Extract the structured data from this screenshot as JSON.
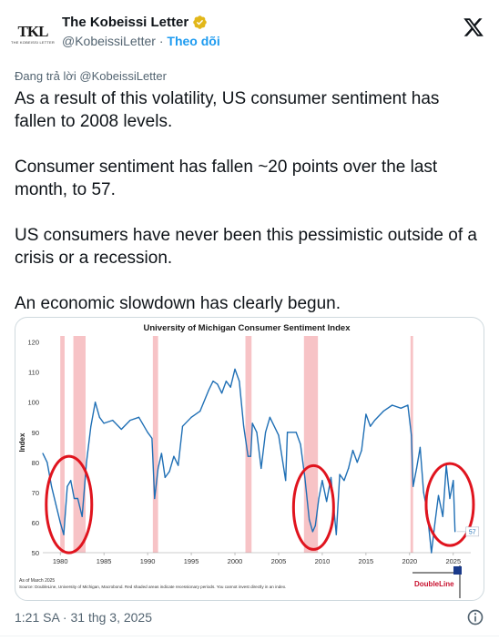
{
  "header": {
    "avatar_text": "TKL",
    "avatar_subtext": "THE KOBEISSI LETTER",
    "display_name": "The Kobeissi Letter",
    "handle": "@KobeissiLetter",
    "separator": "·",
    "follow_label": "Theo dõi"
  },
  "reply_to": "Đang trả lời @KobeissiLetter",
  "tweet": {
    "line1": "As a result of this volatility, US consumer sentiment has fallen to 2008 levels.",
    "line2": "Consumer sentiment has fallen ~20 points over the last month, to 57.",
    "line3": "US consumers have never been this pessimistic outside of a crisis or a recession.",
    "line4": "An economic slowdown has clearly begun."
  },
  "footer": {
    "timestamp": "1:21 SA · 31 thg 3, 2025"
  },
  "colors": {
    "line": "#1f6fb5",
    "recession": "#f7c3c6",
    "circle": "#e0141e",
    "link": "#1d9bf0"
  },
  "chart_data": {
    "type": "line",
    "title": "University of Michigan Consumer Sentiment Index",
    "ylabel": "Index",
    "xlabel": "",
    "xlim": [
      1978,
      2027
    ],
    "ylim": [
      50,
      122
    ],
    "y_ticks": [
      50,
      60,
      70,
      80,
      90,
      100,
      110,
      120
    ],
    "x_ticks": [
      "1980",
      "1985",
      "1990",
      "1995",
      "2000",
      "2005",
      "2010",
      "2015",
      "2020",
      "2025"
    ],
    "x_tick_values": [
      1980,
      1985,
      1990,
      1995,
      2000,
      2005,
      2010,
      2015,
      2020,
      2025
    ],
    "recessions": [
      [
        1980.0,
        1980.5
      ],
      [
        1981.5,
        1982.9
      ],
      [
        1990.6,
        1991.2
      ],
      [
        2001.2,
        2001.9
      ],
      [
        2007.9,
        2009.5
      ],
      [
        2020.1,
        2020.4
      ]
    ],
    "last_value_label": "57",
    "note": "As of March 2025",
    "source": "Source: DoubleLine, University of Michigan, Macrobond. Red shaded areas indicate recessionary periods. You cannot invest directly in an index.",
    "brand": "DoubleLine",
    "series": [
      {
        "x": [
          1978.0,
          1978.5,
          1979.0,
          1979.5,
          1980.0,
          1980.4,
          1980.8,
          1981.2,
          1981.6,
          1982.0,
          1982.5,
          1983.0,
          1983.5,
          1984.0,
          1984.5,
          1985.0,
          1986.0,
          1987.0,
          1988.0,
          1989.0,
          1990.0,
          1990.5,
          1990.8,
          1991.2,
          1991.6,
          1992.0,
          1992.5,
          1993.0,
          1993.5,
          1994.0,
          1995.0,
          1996.0,
          1997.0,
          1997.5,
          1998.0,
          1998.5,
          1999.0,
          1999.5,
          2000.0,
          2000.5,
          2001.0,
          2001.5,
          2001.8,
          2002.0,
          2002.5,
          2003.0,
          2003.5,
          2004.0,
          2005.0,
          2005.8,
          2006.0,
          2007.0,
          2007.5,
          2008.0,
          2008.5,
          2008.9,
          2009.2,
          2009.6,
          2010.0,
          2010.5,
          2011.0,
          2011.6,
          2012.0,
          2012.5,
          2013.0,
          2013.5,
          2014.0,
          2014.5,
          2015.0,
          2015.5,
          2016.0,
          2017.0,
          2018.0,
          2019.0,
          2019.8,
          2020.2,
          2020.4,
          2020.8,
          2021.2,
          2021.6,
          2022.0,
          2022.5,
          2022.9,
          2023.3,
          2023.8,
          2024.2,
          2024.6,
          2025.0,
          2025.2
        ],
        "values": [
          83,
          80,
          72,
          66,
          60,
          56,
          72,
          74,
          68,
          68,
          62,
          80,
          92,
          100,
          95,
          93,
          94,
          91,
          94,
          95,
          90,
          88,
          68,
          78,
          83,
          75,
          77,
          82,
          79,
          92,
          95,
          97,
          104,
          107,
          106,
          103,
          107,
          105,
          111,
          107,
          92,
          82,
          82,
          93,
          90,
          78,
          90,
          95,
          89,
          74,
          90,
          90,
          86,
          75,
          61,
          57,
          59,
          68,
          74,
          67,
          75,
          56,
          76,
          74,
          78,
          84,
          80,
          84,
          96,
          92,
          94,
          97,
          99,
          98,
          99,
          89,
          72,
          78,
          85,
          70,
          64,
          50,
          60,
          69,
          62,
          79,
          68,
          74,
          57
        ]
      }
    ]
  }
}
